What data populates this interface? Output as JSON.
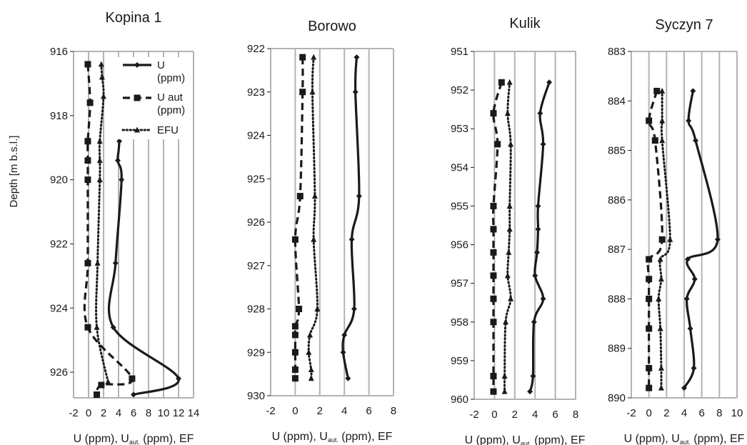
{
  "figure": {
    "ylabel": "Depth [m b.s.l.]",
    "legend": {
      "placement": "top-right of first panel",
      "entries": [
        {
          "line1": "U",
          "line2": "(ppm)",
          "style": "solid",
          "marker": "diamond"
        },
        {
          "line1": "U aut",
          "line2": "(ppm)",
          "style": "dashed",
          "marker": "square"
        },
        {
          "line1": "EFU",
          "line2": "",
          "style": "dotted",
          "marker": "triangle"
        }
      ]
    },
    "xlabel_parts": {
      "main": "U (ppm), U",
      "sub": "aut.",
      "tail": " (ppm), EF"
    }
  },
  "chart_data": [
    {
      "type": "line",
      "title": "Kopina 1",
      "xlim": [
        -2,
        14
      ],
      "xticks": [
        -2,
        0,
        2,
        4,
        6,
        8,
        10,
        12,
        14
      ],
      "ylim": [
        916,
        926.8
      ],
      "yticks": [
        916,
        918,
        920,
        922,
        924,
        926
      ],
      "grid": "vertical",
      "series": [
        {
          "name": "U (ppm)",
          "style": "solid",
          "depth": [
            916.4,
            918.8,
            919.4,
            920.0,
            922.6,
            924.6,
            926.2,
            926.7
          ],
          "values": [
            4.5,
            4.1,
            3.9,
            4.4,
            3.6,
            3.3,
            12.0,
            6.0
          ]
        },
        {
          "name": "U aut (ppm)",
          "style": "dashed",
          "depth": [
            916.4,
            917.6,
            918.8,
            919.4,
            920.0,
            922.6,
            924.6,
            926.2,
            926.4,
            926.7
          ],
          "values": [
            -0.1,
            0.2,
            -0.1,
            -0.1,
            -0.1,
            -0.1,
            -0.1,
            5.8,
            1.7,
            1.1
          ]
        },
        {
          "name": "EFU",
          "style": "dotted",
          "depth": [
            916.4,
            916.8,
            917.4,
            918.8,
            919.4,
            920.0,
            922.6,
            924.6,
            926.3
          ],
          "values": [
            1.7,
            1.8,
            2.0,
            1.5,
            1.5,
            1.5,
            1.2,
            1.1,
            2.6
          ]
        }
      ]
    },
    {
      "type": "line",
      "title": "Borowo",
      "xlim": [
        -2,
        8
      ],
      "xticks": [
        -2,
        0,
        2,
        4,
        6,
        8
      ],
      "ylim": [
        922,
        930
      ],
      "yticks": [
        922,
        923,
        924,
        925,
        926,
        927,
        928,
        929,
        930
      ],
      "grid": "vertical",
      "series": [
        {
          "name": "U (ppm)",
          "style": "solid",
          "depth": [
            922.2,
            923.0,
            925.4,
            926.4,
            928.0,
            928.6,
            929.0,
            929.6
          ],
          "values": [
            5.0,
            4.9,
            5.2,
            4.6,
            4.8,
            4.0,
            3.9,
            4.3
          ]
        },
        {
          "name": "U aut (ppm)",
          "style": "dashed",
          "depth": [
            922.2,
            923.0,
            925.4,
            926.4,
            928.0,
            928.4,
            928.6,
            929.0,
            929.4,
            929.6
          ],
          "values": [
            0.6,
            0.6,
            0.4,
            0.0,
            0.3,
            0.0,
            0.0,
            0.0,
            0.0,
            0.0
          ]
        },
        {
          "name": "EFU",
          "style": "dotted",
          "depth": [
            922.2,
            923.0,
            925.4,
            926.4,
            928.0,
            928.6,
            929.0,
            929.4,
            929.6
          ],
          "values": [
            1.5,
            1.4,
            1.6,
            1.5,
            1.8,
            1.2,
            1.1,
            1.3,
            1.3
          ]
        }
      ]
    },
    {
      "type": "line",
      "title": "Kulik",
      "xlim": [
        -2,
        8
      ],
      "xticks": [
        -2,
        0,
        2,
        4,
        6,
        8
      ],
      "ylim": [
        951,
        960
      ],
      "yticks": [
        951,
        952,
        953,
        954,
        955,
        956,
        957,
        958,
        959,
        960
      ],
      "grid": "vertical",
      "series": [
        {
          "name": "U (ppm)",
          "style": "solid",
          "depth": [
            951.8,
            952.6,
            953.4,
            955.0,
            955.6,
            956.2,
            956.8,
            957.4,
            958.0,
            959.4,
            959.8
          ],
          "values": [
            5.4,
            4.5,
            4.8,
            4.3,
            4.3,
            4.2,
            4.0,
            4.8,
            3.9,
            3.8,
            3.5
          ]
        },
        {
          "name": "U aut (ppm)",
          "style": "dashed",
          "depth": [
            951.8,
            952.6,
            953.4,
            955.0,
            955.6,
            956.2,
            956.8,
            957.4,
            958.0,
            959.4,
            959.8
          ],
          "values": [
            0.7,
            -0.1,
            0.3,
            -0.1,
            -0.1,
            -0.1,
            -0.1,
            -0.1,
            -0.1,
            -0.1,
            -0.1
          ]
        },
        {
          "name": "EFU",
          "style": "dotted",
          "depth": [
            951.8,
            952.6,
            953.4,
            955.0,
            955.6,
            956.2,
            956.8,
            957.4,
            958.0,
            959.4,
            959.8
          ],
          "values": [
            1.5,
            1.3,
            1.6,
            1.5,
            1.5,
            1.4,
            1.3,
            1.6,
            1.1,
            1.0,
            1.0
          ]
        }
      ]
    },
    {
      "type": "line",
      "title": "Syczyn 7",
      "xlim": [
        -2,
        10
      ],
      "xticks": [
        -2,
        0,
        2,
        4,
        6,
        8,
        10
      ],
      "ylim": [
        883,
        890
      ],
      "yticks": [
        883,
        884,
        885,
        886,
        887,
        888,
        889,
        890
      ],
      "grid": "vertical",
      "series": [
        {
          "name": "U (ppm)",
          "style": "solid",
          "depth": [
            883.8,
            884.4,
            884.8,
            886.8,
            887.2,
            887.6,
            888.0,
            888.6,
            889.4,
            889.8
          ],
          "values": [
            5.0,
            4.5,
            5.3,
            7.8,
            4.4,
            5.2,
            4.3,
            4.7,
            5.1,
            4.0
          ]
        },
        {
          "name": "U aut (ppm)",
          "style": "dashed",
          "depth": [
            883.8,
            884.4,
            884.8,
            886.8,
            887.2,
            887.6,
            888.0,
            888.6,
            889.4,
            889.8
          ],
          "values": [
            0.9,
            0.0,
            0.7,
            1.5,
            0.0,
            0.0,
            0.0,
            0.0,
            0.0,
            0.0
          ]
        },
        {
          "name": "EFU",
          "style": "dotted",
          "depth": [
            883.8,
            884.4,
            884.8,
            886.8,
            887.2,
            887.6,
            888.0,
            888.6,
            889.4,
            889.8
          ],
          "values": [
            1.5,
            1.5,
            1.5,
            2.4,
            1.3,
            1.4,
            1.1,
            1.3,
            1.4,
            1.4
          ]
        }
      ]
    }
  ]
}
